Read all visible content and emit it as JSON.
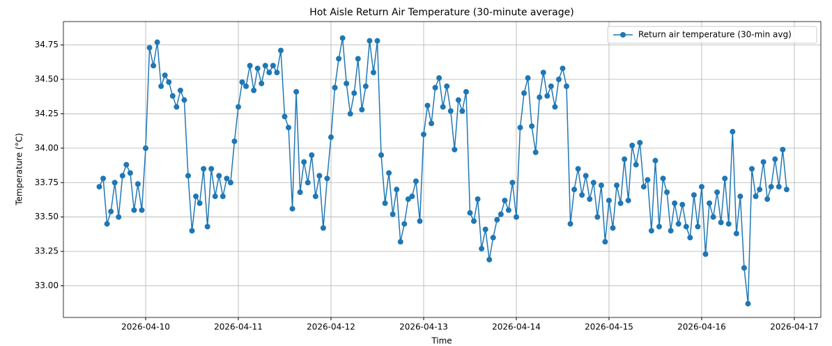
{
  "chart_data": {
    "type": "line",
    "title": "Hot Aisle Return Air Temperature (30-minute average)",
    "xlabel": "Time",
    "ylabel": "Temperature (°C)",
    "legend": "upper right",
    "grid": true,
    "xlim": [
      "2026-04-09T02:42",
      "2026-04-17T06:52"
    ],
    "xticks": [
      "2026-04-10",
      "2026-04-11",
      "2026-04-12",
      "2026-04-13",
      "2026-04-14",
      "2026-04-15",
      "2026-04-16",
      "2026-04-17"
    ],
    "ylim": [
      32.77,
      34.92
    ],
    "yticks": [
      {
        "value": 33,
        "label": "33.00"
      },
      {
        "value": 33.25,
        "label": "33.25"
      },
      {
        "value": 33.5,
        "label": "33.50"
      },
      {
        "value": 33.75,
        "label": "33.75"
      },
      {
        "value": 34,
        "label": "34.00"
      },
      {
        "value": 34.25,
        "label": "34.25"
      },
      {
        "value": 34.5,
        "label": "34.50"
      },
      {
        "value": 34.75,
        "label": "34.75"
      }
    ],
    "x": [
      "2026-04-09T12:00",
      "2026-04-09T13:00",
      "2026-04-09T14:00",
      "2026-04-09T15:00",
      "2026-04-09T16:00",
      "2026-04-09T17:00",
      "2026-04-09T18:00",
      "2026-04-09T19:00",
      "2026-04-09T20:00",
      "2026-04-09T21:00",
      "2026-04-09T22:00",
      "2026-04-09T23:00",
      "2026-04-10T00:00",
      "2026-04-10T01:00",
      "2026-04-10T02:00",
      "2026-04-10T03:00",
      "2026-04-10T04:00",
      "2026-04-10T05:00",
      "2026-04-10T06:00",
      "2026-04-10T07:00",
      "2026-04-10T08:00",
      "2026-04-10T09:00",
      "2026-04-10T10:00",
      "2026-04-10T11:00",
      "2026-04-10T12:00",
      "2026-04-10T13:00",
      "2026-04-10T14:00",
      "2026-04-10T15:00",
      "2026-04-10T16:00",
      "2026-04-10T17:00",
      "2026-04-10T18:00",
      "2026-04-10T19:00",
      "2026-04-10T20:00",
      "2026-04-10T21:00",
      "2026-04-10T22:00",
      "2026-04-10T23:00",
      "2026-04-11T00:00",
      "2026-04-11T01:00",
      "2026-04-11T02:00",
      "2026-04-11T03:00",
      "2026-04-11T04:00",
      "2026-04-11T05:00",
      "2026-04-11T06:00",
      "2026-04-11T07:00",
      "2026-04-11T08:00",
      "2026-04-11T09:00",
      "2026-04-11T10:00",
      "2026-04-11T11:00",
      "2026-04-11T12:00",
      "2026-04-11T13:00",
      "2026-04-11T14:00",
      "2026-04-11T15:00",
      "2026-04-11T16:00",
      "2026-04-11T17:00",
      "2026-04-11T18:00",
      "2026-04-11T19:00",
      "2026-04-11T20:00",
      "2026-04-11T21:00",
      "2026-04-11T22:00",
      "2026-04-11T23:00",
      "2026-04-12T00:00",
      "2026-04-12T01:00",
      "2026-04-12T02:00",
      "2026-04-12T03:00",
      "2026-04-12T04:00",
      "2026-04-12T05:00",
      "2026-04-12T06:00",
      "2026-04-12T07:00",
      "2026-04-12T08:00",
      "2026-04-12T09:00",
      "2026-04-12T10:00",
      "2026-04-12T11:00",
      "2026-04-12T12:00",
      "2026-04-12T13:00",
      "2026-04-12T14:00",
      "2026-04-12T15:00",
      "2026-04-12T16:00",
      "2026-04-12T17:00",
      "2026-04-12T18:00",
      "2026-04-12T19:00",
      "2026-04-12T20:00",
      "2026-04-12T21:00",
      "2026-04-12T22:00",
      "2026-04-12T23:00",
      "2026-04-13T00:00",
      "2026-04-13T01:00",
      "2026-04-13T02:00",
      "2026-04-13T03:00",
      "2026-04-13T04:00",
      "2026-04-13T05:00",
      "2026-04-13T06:00",
      "2026-04-13T07:00",
      "2026-04-13T08:00",
      "2026-04-13T09:00",
      "2026-04-13T10:00",
      "2026-04-13T11:00",
      "2026-04-13T12:00",
      "2026-04-13T13:00",
      "2026-04-13T14:00",
      "2026-04-13T15:00",
      "2026-04-13T16:00",
      "2026-04-13T17:00",
      "2026-04-13T18:00",
      "2026-04-13T19:00",
      "2026-04-13T20:00",
      "2026-04-13T21:00",
      "2026-04-13T22:00",
      "2026-04-13T23:00",
      "2026-04-14T00:00",
      "2026-04-14T01:00",
      "2026-04-14T02:00",
      "2026-04-14T03:00",
      "2026-04-14T04:00",
      "2026-04-14T05:00",
      "2026-04-14T06:00",
      "2026-04-14T07:00",
      "2026-04-14T08:00",
      "2026-04-14T09:00",
      "2026-04-14T10:00",
      "2026-04-14T11:00",
      "2026-04-14T12:00",
      "2026-04-14T13:00",
      "2026-04-14T14:00",
      "2026-04-14T15:00",
      "2026-04-14T16:00",
      "2026-04-14T17:00",
      "2026-04-14T18:00",
      "2026-04-14T19:00",
      "2026-04-14T20:00",
      "2026-04-14T21:00",
      "2026-04-14T22:00",
      "2026-04-14T23:00",
      "2026-04-15T00:00",
      "2026-04-15T01:00",
      "2026-04-15T02:00",
      "2026-04-15T03:00",
      "2026-04-15T04:00",
      "2026-04-15T05:00",
      "2026-04-15T06:00",
      "2026-04-15T07:00",
      "2026-04-15T08:00",
      "2026-04-15T09:00",
      "2026-04-15T10:00",
      "2026-04-15T11:00",
      "2026-04-15T12:00",
      "2026-04-15T13:00",
      "2026-04-15T14:00",
      "2026-04-15T15:00",
      "2026-04-15T16:00",
      "2026-04-15T17:00",
      "2026-04-15T18:00",
      "2026-04-15T19:00",
      "2026-04-15T20:00",
      "2026-04-15T21:00",
      "2026-04-15T22:00",
      "2026-04-15T23:00",
      "2026-04-16T00:00",
      "2026-04-16T01:00",
      "2026-04-16T02:00",
      "2026-04-16T03:00",
      "2026-04-16T04:00",
      "2026-04-16T05:00",
      "2026-04-16T06:00",
      "2026-04-16T07:00",
      "2026-04-16T08:00",
      "2026-04-16T09:00",
      "2026-04-16T10:00",
      "2026-04-16T11:00",
      "2026-04-16T12:00",
      "2026-04-16T13:00",
      "2026-04-16T14:00",
      "2026-04-16T15:00",
      "2026-04-16T16:00",
      "2026-04-16T17:00",
      "2026-04-16T18:00",
      "2026-04-16T19:00",
      "2026-04-16T20:00",
      "2026-04-16T21:00",
      "2026-04-16T22:00"
    ],
    "series": [
      {
        "name": "Return air temperature (30-min avg)",
        "color": "#1f77b4",
        "values": [
          33.72,
          33.78,
          33.45,
          33.54,
          33.75,
          33.5,
          33.8,
          33.88,
          33.82,
          33.55,
          33.74,
          33.55,
          34.0,
          34.73,
          34.6,
          34.77,
          34.45,
          34.53,
          34.48,
          34.38,
          34.3,
          34.42,
          34.35,
          33.8,
          33.4,
          33.65,
          33.6,
          33.85,
          33.43,
          33.85,
          33.65,
          33.8,
          33.65,
          33.78,
          33.75,
          34.05,
          34.3,
          34.48,
          34.45,
          34.6,
          34.42,
          34.58,
          34.47,
          34.6,
          34.55,
          34.6,
          34.55,
          34.71,
          34.23,
          34.15,
          33.56,
          34.41,
          33.68,
          33.9,
          33.75,
          33.95,
          33.65,
          33.8,
          33.42,
          33.78,
          34.08,
          34.44,
          34.65,
          34.8,
          34.47,
          34.25,
          34.4,
          34.65,
          34.28,
          34.45,
          34.78,
          34.55,
          34.78,
          33.95,
          33.6,
          33.82,
          33.52,
          33.7,
          33.32,
          33.45,
          33.63,
          33.65,
          33.76,
          33.47,
          34.1,
          34.31,
          34.18,
          34.44,
          34.51,
          34.3,
          34.45,
          34.27,
          33.99,
          34.35,
          34.27,
          34.41,
          33.53,
          33.47,
          33.63,
          33.27,
          33.41,
          33.19,
          33.35,
          33.48,
          33.52,
          33.62,
          33.55,
          33.75,
          33.5,
          34.15,
          34.4,
          34.51,
          34.16,
          33.97,
          34.37,
          34.55,
          34.38,
          34.45,
          34.3,
          34.5,
          34.58,
          34.45,
          33.45,
          33.7,
          33.85,
          33.66,
          33.8,
          33.63,
          33.75,
          33.5,
          33.73,
          33.32,
          33.62,
          33.42,
          33.73,
          33.6,
          33.92,
          33.62,
          34.02,
          33.88,
          34.04,
          33.72,
          33.77,
          33.4,
          33.91,
          33.43,
          33.78,
          33.68,
          33.4,
          33.6,
          33.45,
          33.59,
          33.43,
          33.35,
          33.66,
          33.43,
          33.72,
          33.23,
          33.6,
          33.5,
          33.68,
          33.46,
          33.78,
          33.45,
          34.12,
          33.38,
          33.65,
          33.13,
          32.87,
          33.85,
          33.65,
          33.7,
          33.9,
          33.63,
          33.72,
          33.92,
          33.72,
          33.99,
          33.7
        ]
      }
    ]
  }
}
